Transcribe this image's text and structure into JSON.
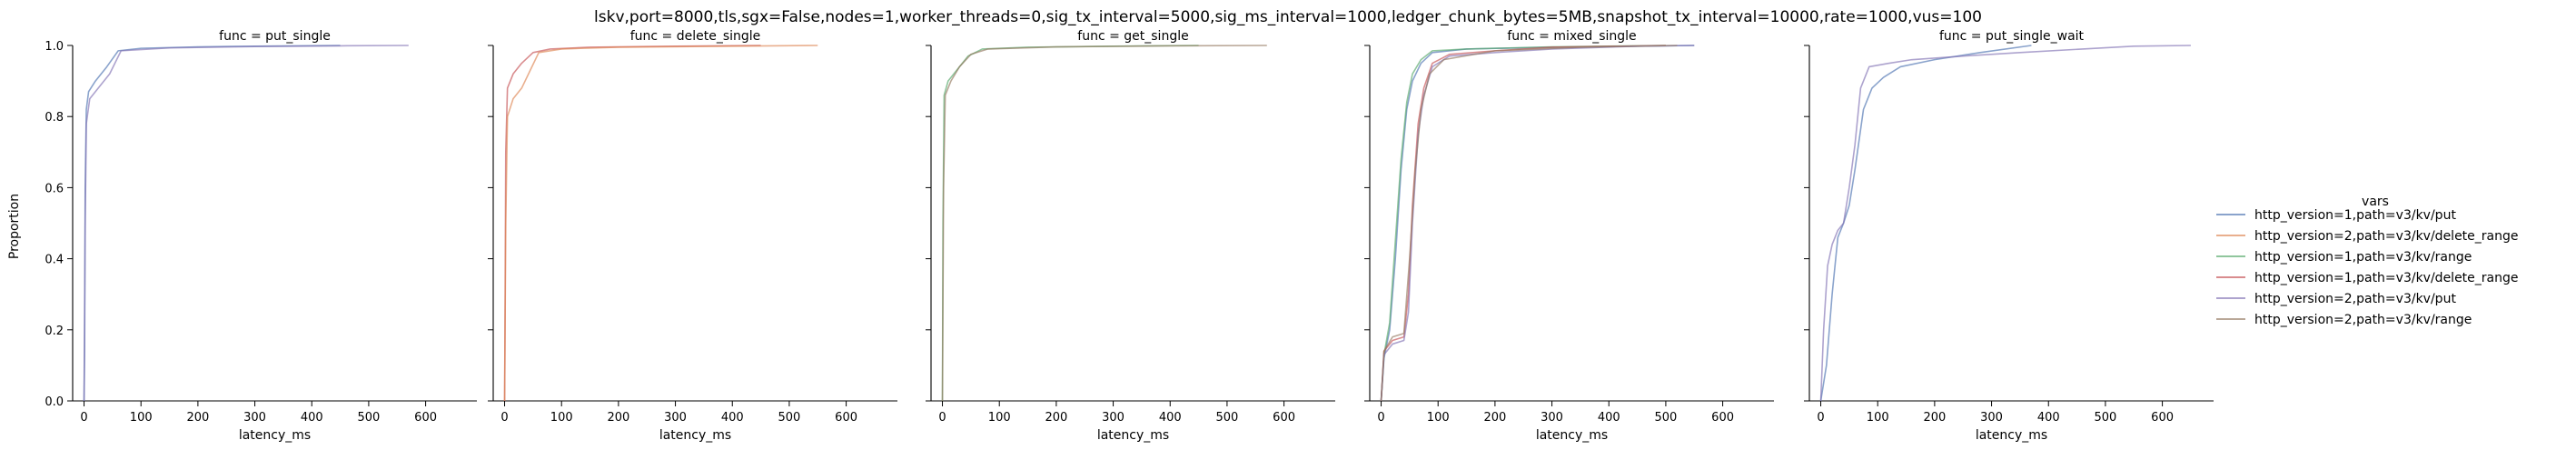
{
  "chart_data": {
    "type": "line",
    "title": "lskv,port=8000,tls,sgx=False,nodes=1,worker_threads=0,sig_tx_interval=5000,sig_ms_interval=1000,ledger_chunk_bytes=5MB,snapshot_tx_interval=10000,rate=1000,vus=100",
    "ylabel": "Proportion",
    "xlabel": "latency_ms",
    "xlim": [
      -20,
      690
    ],
    "ylim": [
      0,
      1.0
    ],
    "xticks": [
      0,
      100,
      200,
      300,
      400,
      500,
      600
    ],
    "yticks": [
      0.0,
      0.2,
      0.4,
      0.6,
      0.8,
      1.0
    ],
    "xtick_labels": [
      "0",
      "100",
      "200",
      "300",
      "400",
      "500",
      "600"
    ],
    "ytick_labels": [
      "0.0",
      "0.2",
      "0.4",
      "0.6",
      "0.8",
      "1.0"
    ],
    "legend": {
      "title": "vars",
      "position": "right",
      "entries": [
        {
          "label": "http_version=1,path=v3/kv/put",
          "color": "#4c72b0"
        },
        {
          "label": "http_version=2,path=v3/kv/delete_range",
          "color": "#dd8452"
        },
        {
          "label": "http_version=1,path=v3/kv/range",
          "color": "#55a868"
        },
        {
          "label": "http_version=1,path=v3/kv/delete_range",
          "color": "#c44e52"
        },
        {
          "label": "http_version=2,path=v3/kv/put",
          "color": "#8172b3"
        },
        {
          "label": "http_version=2,path=v3/kv/range",
          "color": "#937860"
        }
      ]
    },
    "panels": [
      {
        "title": "func = put_single",
        "series": [
          {
            "name": "http_version=1,path=v3/kv/put",
            "color": "#4c72b0",
            "points": [
              [
                0,
                0
              ],
              [
                1,
                0.15
              ],
              [
                2,
                0.6
              ],
              [
                4,
                0.82
              ],
              [
                8,
                0.87
              ],
              [
                20,
                0.9
              ],
              [
                40,
                0.94
              ],
              [
                60,
                0.985
              ],
              [
                100,
                0.992
              ],
              [
                200,
                0.996
              ],
              [
                300,
                0.998
              ],
              [
                450,
                1.0
              ]
            ]
          },
          {
            "name": "http_version=2,path=v3/kv/put",
            "color": "#8172b3",
            "points": [
              [
                0,
                0
              ],
              [
                2,
                0.5
              ],
              [
                4,
                0.78
              ],
              [
                10,
                0.85
              ],
              [
                25,
                0.88
              ],
              [
                45,
                0.92
              ],
              [
                65,
                0.985
              ],
              [
                150,
                0.993
              ],
              [
                300,
                0.997
              ],
              [
                450,
                0.999
              ],
              [
                570,
                1.0
              ]
            ]
          }
        ]
      },
      {
        "title": "func = delete_single",
        "series": [
          {
            "name": "http_version=1,path=v3/kv/delete_range",
            "color": "#c44e52",
            "points": [
              [
                0,
                0
              ],
              [
                1,
                0.3
              ],
              [
                2,
                0.7
              ],
              [
                5,
                0.88
              ],
              [
                15,
                0.92
              ],
              [
                30,
                0.95
              ],
              [
                50,
                0.98
              ],
              [
                80,
                0.99
              ],
              [
                150,
                0.995
              ],
              [
                300,
                0.998
              ],
              [
                450,
                1.0
              ]
            ]
          },
          {
            "name": "http_version=2,path=v3/kv/delete_range",
            "color": "#dd8452",
            "points": [
              [
                0,
                0
              ],
              [
                2,
                0.5
              ],
              [
                5,
                0.8
              ],
              [
                15,
                0.85
              ],
              [
                30,
                0.88
              ],
              [
                45,
                0.93
              ],
              [
                60,
                0.98
              ],
              [
                100,
                0.99
              ],
              [
                200,
                0.995
              ],
              [
                400,
                0.998
              ],
              [
                550,
                1.0
              ]
            ]
          }
        ]
      },
      {
        "title": "func = get_single",
        "series": [
          {
            "name": "http_version=1,path=v3/kv/range",
            "color": "#55a868",
            "points": [
              [
                0,
                0
              ],
              [
                1,
                0.5
              ],
              [
                3,
                0.86
              ],
              [
                10,
                0.9
              ],
              [
                25,
                0.93
              ],
              [
                45,
                0.97
              ],
              [
                70,
                0.99
              ],
              [
                150,
                0.995
              ],
              [
                300,
                0.998
              ],
              [
                450,
                1.0
              ]
            ]
          },
          {
            "name": "http_version=2,path=v3/kv/range",
            "color": "#937860",
            "points": [
              [
                0,
                0
              ],
              [
                2,
                0.6
              ],
              [
                5,
                0.86
              ],
              [
                15,
                0.9
              ],
              [
                30,
                0.94
              ],
              [
                50,
                0.975
              ],
              [
                80,
                0.99
              ],
              [
                200,
                0.996
              ],
              [
                400,
                0.999
              ],
              [
                570,
                1.0
              ]
            ]
          }
        ]
      },
      {
        "title": "func = mixed_single",
        "series": [
          {
            "name": "http_version=1,path=v3/kv/put",
            "color": "#4c72b0",
            "points": [
              [
                0,
                0
              ],
              [
                5,
                0.12
              ],
              [
                15,
                0.2
              ],
              [
                25,
                0.4
              ],
              [
                35,
                0.65
              ],
              [
                45,
                0.82
              ],
              [
                55,
                0.9
              ],
              [
                70,
                0.95
              ],
              [
                90,
                0.98
              ],
              [
                150,
                0.99
              ],
              [
                300,
                0.995
              ],
              [
                450,
                0.998
              ],
              [
                550,
                1.0
              ]
            ]
          },
          {
            "name": "http_version=1,path=v3/kv/range",
            "color": "#55a868",
            "points": [
              [
                0,
                0
              ],
              [
                5,
                0.13
              ],
              [
                15,
                0.22
              ],
              [
                25,
                0.45
              ],
              [
                35,
                0.68
              ],
              [
                45,
                0.84
              ],
              [
                55,
                0.92
              ],
              [
                70,
                0.96
              ],
              [
                90,
                0.985
              ],
              [
                150,
                0.99
              ],
              [
                300,
                0.996
              ],
              [
                500,
                1.0
              ]
            ]
          },
          {
            "name": "http_version=1,path=v3/kv/delete_range",
            "color": "#c44e52",
            "points": [
              [
                0,
                0
              ],
              [
                5,
                0.14
              ],
              [
                20,
                0.17
              ],
              [
                40,
                0.18
              ],
              [
                48,
                0.3
              ],
              [
                55,
                0.55
              ],
              [
                65,
                0.78
              ],
              [
                75,
                0.88
              ],
              [
                90,
                0.95
              ],
              [
                120,
                0.975
              ],
              [
                200,
                0.985
              ],
              [
                300,
                0.995
              ],
              [
                500,
                1.0
              ]
            ]
          },
          {
            "name": "http_version=2,path=v3/kv/put",
            "color": "#8172b3",
            "points": [
              [
                0,
                0
              ],
              [
                5,
                0.13
              ],
              [
                20,
                0.16
              ],
              [
                40,
                0.17
              ],
              [
                48,
                0.25
              ],
              [
                55,
                0.5
              ],
              [
                65,
                0.75
              ],
              [
                75,
                0.86
              ],
              [
                90,
                0.94
              ],
              [
                120,
                0.97
              ],
              [
                200,
                0.98
              ],
              [
                300,
                0.99
              ],
              [
                450,
                0.998
              ],
              [
                550,
                1.0
              ]
            ]
          },
          {
            "name": "http_version=2,path=v3/kv/range",
            "color": "#937860",
            "points": [
              [
                0,
                0
              ],
              [
                5,
                0.14
              ],
              [
                20,
                0.18
              ],
              [
                40,
                0.19
              ],
              [
                50,
                0.4
              ],
              [
                60,
                0.65
              ],
              [
                70,
                0.82
              ],
              [
                85,
                0.92
              ],
              [
                110,
                0.96
              ],
              [
                200,
                0.985
              ],
              [
                350,
                0.995
              ],
              [
                520,
                1.0
              ]
            ]
          }
        ]
      },
      {
        "title": "func = put_single_wait",
        "series": [
          {
            "name": "http_version=1,path=v3/kv/put",
            "color": "#4c72b0",
            "points": [
              [
                0,
                0
              ],
              [
                10,
                0.1
              ],
              [
                20,
                0.3
              ],
              [
                30,
                0.46
              ],
              [
                40,
                0.5
              ],
              [
                50,
                0.55
              ],
              [
                60,
                0.65
              ],
              [
                75,
                0.82
              ],
              [
                90,
                0.88
              ],
              [
                110,
                0.91
              ],
              [
                140,
                0.94
              ],
              [
                200,
                0.96
              ],
              [
                280,
                0.98
              ],
              [
                370,
                1.0
              ]
            ]
          },
          {
            "name": "http_version=2,path=v3/kv/put",
            "color": "#8172b3",
            "points": [
              [
                0,
                0
              ],
              [
                5,
                0.2
              ],
              [
                12,
                0.38
              ],
              [
                20,
                0.44
              ],
              [
                30,
                0.48
              ],
              [
                40,
                0.5
              ],
              [
                50,
                0.6
              ],
              [
                60,
                0.72
              ],
              [
                70,
                0.88
              ],
              [
                85,
                0.94
              ],
              [
                120,
                0.95
              ],
              [
                160,
                0.96
              ],
              [
                250,
                0.97
              ],
              [
                350,
                0.98
              ],
              [
                460,
                0.99
              ],
              [
                550,
                0.998
              ],
              [
                650,
                1.0
              ]
            ]
          }
        ]
      }
    ]
  }
}
